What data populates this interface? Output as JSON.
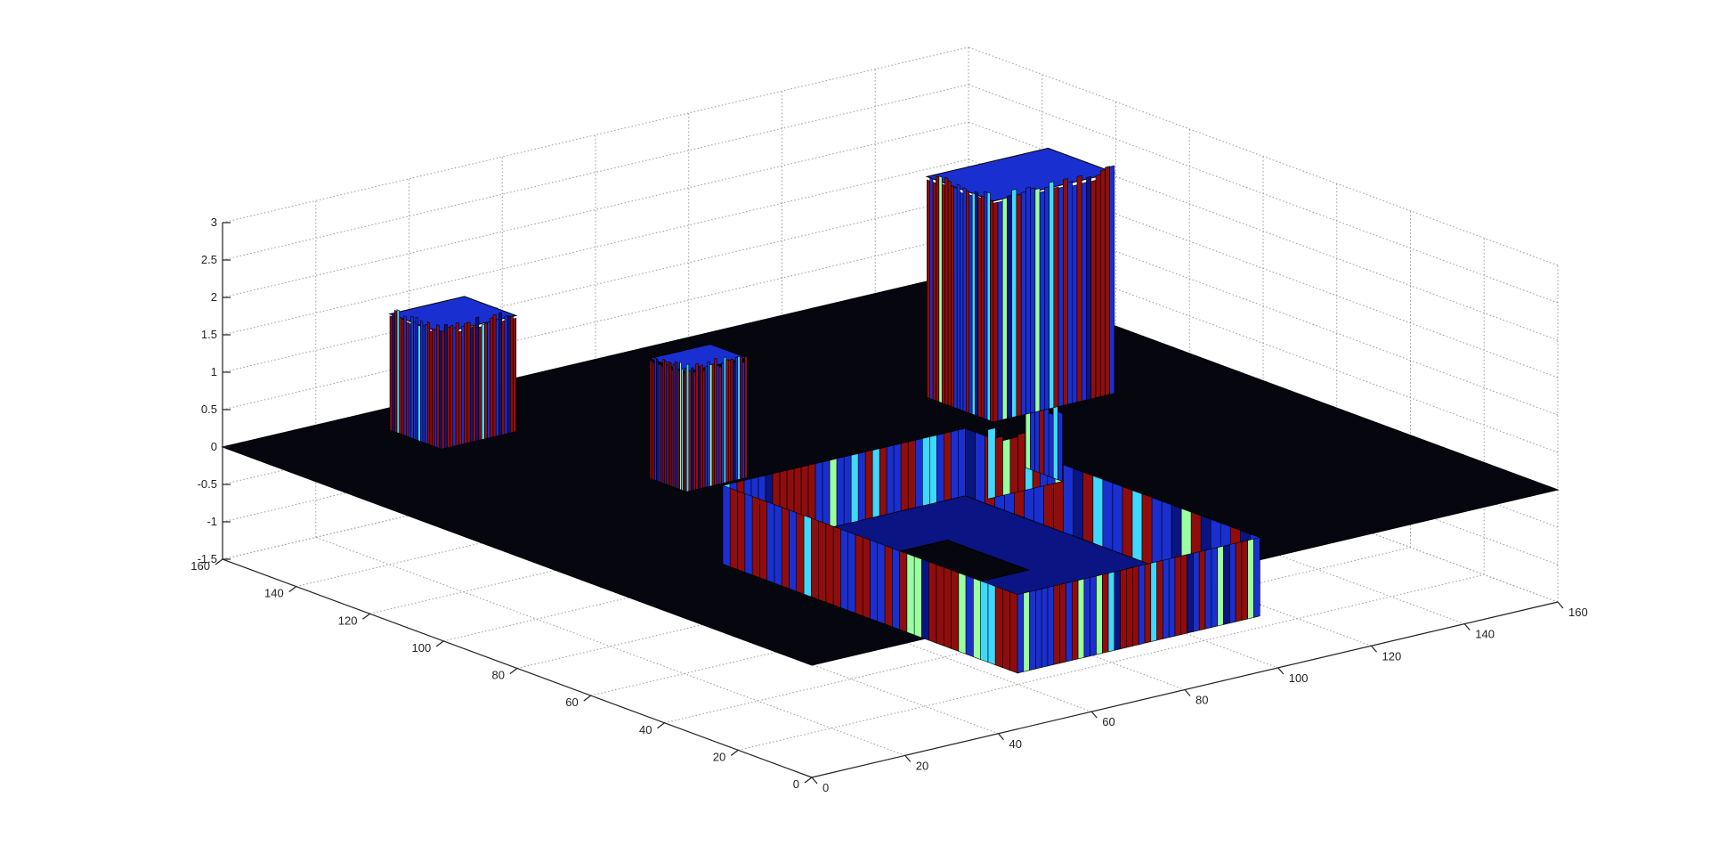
{
  "chart_data": {
    "type": "surface3d",
    "title": "",
    "xlabel": "",
    "ylabel": "",
    "zlabel": "",
    "grid": true,
    "xlim": [
      0,
      160
    ],
    "ylim": [
      0,
      160
    ],
    "zlim": [
      -1.5,
      3
    ],
    "xticks": [
      "0",
      "20",
      "40",
      "60",
      "80",
      "100",
      "120",
      "140",
      "160"
    ],
    "yticks": [
      "0",
      "20",
      "40",
      "60",
      "80",
      "100",
      "120",
      "140",
      "160"
    ],
    "zticks": [
      "-1.5",
      "-1",
      "-0.5",
      "0",
      "0.5",
      "1",
      "1.5",
      "2",
      "2.5",
      "3"
    ],
    "base_level": 0,
    "colors": {
      "base_plane": "#05060e",
      "surface_blue": "#1a2fd0",
      "surface_dark_blue": "#0a1482",
      "surface_red": "#8f0d0d",
      "surface_cyan": "#3fd9ff",
      "surface_green": "#9affa0",
      "grid": "#9a9a9a",
      "axis": "#222222"
    },
    "raised_regions": [
      {
        "x": [
          28,
          44
        ],
        "y": [
          136,
          150
        ],
        "z": 1.55
      },
      {
        "x": [
          45,
          58
        ],
        "y": [
          91,
          101
        ],
        "z": 1.6
      },
      {
        "x": [
          110,
          136
        ],
        "y": [
          90,
          108
        ],
        "z": 2.95
      }
    ],
    "sunken_regions": [
      {
        "x": [
          52,
          104
        ],
        "y": [
          10,
          90
        ],
        "z": -0.9
      }
    ],
    "ridges": [
      {
        "x": [
          82,
          98
        ],
        "y": [
          56,
          66
        ],
        "z": 0.8
      }
    ]
  }
}
